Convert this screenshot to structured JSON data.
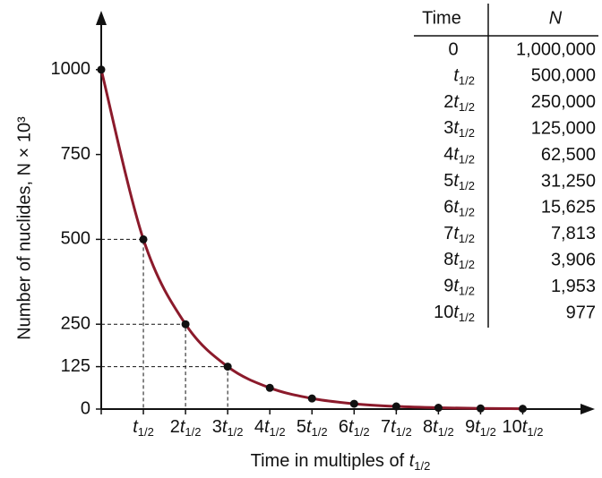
{
  "chart_data": {
    "type": "line",
    "xlabel": "Time in multiples of t1/2",
    "ylabel": "Number of nuclides, N × 10³",
    "x": [
      0,
      1,
      2,
      3,
      4,
      5,
      6,
      7,
      8,
      9,
      10
    ],
    "series": [
      {
        "color": "#8b1a2b",
        "values": [
          1000,
          500,
          250,
          125,
          62.5,
          31.25,
          15.625,
          7.813,
          3.906,
          1.953,
          0.977
        ]
      }
    ],
    "xlim": [
      0,
      11.6
    ],
    "ylim": [
      0,
      1160
    ],
    "xticks": [
      0,
      {
        "value": 1,
        "label": "t1/2"
      },
      {
        "value": 2,
        "label": "2t1/2"
      },
      {
        "value": 3,
        "label": "3t1/2"
      },
      {
        "value": 4,
        "label": "4t1/2"
      },
      {
        "value": 5,
        "label": "5t1/2"
      },
      {
        "value": 6,
        "label": "6t1/2"
      },
      {
        "value": 7,
        "label": "7t1/2"
      },
      {
        "value": 8,
        "label": "8t1/2"
      },
      {
        "value": 9,
        "label": "9t1/2"
      },
      {
        "value": 10,
        "label": "10t1/2"
      }
    ],
    "yticks": [
      0,
      125,
      250,
      500,
      750,
      1000
    ]
  },
  "table": {
    "header": [
      "Time",
      "N"
    ],
    "rows": [
      [
        "0",
        "1,000,000"
      ],
      [
        "t1/2",
        "500,000"
      ],
      [
        "2t1/2",
        "250,000"
      ],
      [
        "3t1/2",
        "125,000"
      ],
      [
        "4t1/2",
        "62,500"
      ],
      [
        "5t1/2",
        "31,250"
      ],
      [
        "6t1/2",
        "15,625"
      ],
      [
        "7t1/2",
        "7,813"
      ],
      [
        "8t1/2",
        "3,906"
      ],
      [
        "9t1/2",
        "1,953"
      ],
      [
        "10t1/2",
        "977"
      ]
    ]
  }
}
